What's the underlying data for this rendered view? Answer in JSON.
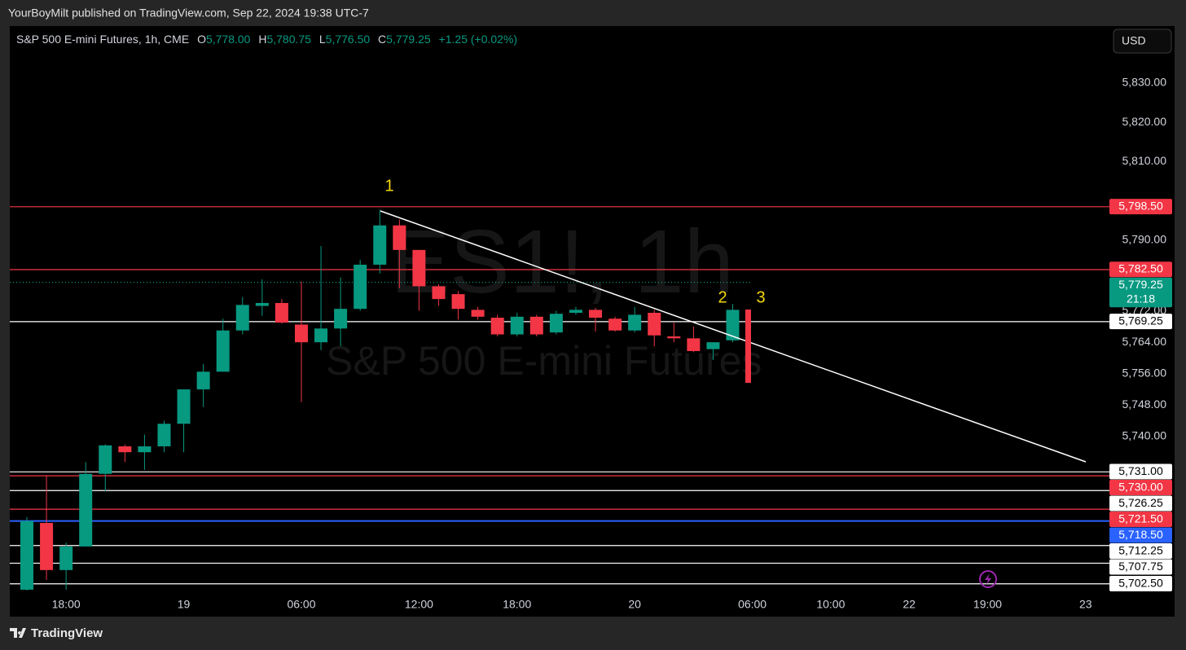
{
  "header": {
    "byline": "YourBoyMilt published on TradingView.com, Sep 22, 2024 19:38 UTC-7"
  },
  "footer": {
    "brand": "TradingView"
  },
  "currency": "USD",
  "chart_data": {
    "type": "candlestick",
    "title": "S&P 500 E-mini Futures, 1h, CME",
    "ohlc_legend": {
      "o_label": "O",
      "o": "5,778.00",
      "h_label": "H",
      "h": "5,780.75",
      "l_label": "L",
      "l": "5,776.50",
      "c_label": "C",
      "c": "5,779.25",
      "change": "+1.25 (+0.02%)"
    },
    "watermark": [
      "ES1!, 1h",
      "S&P 500 E-mini Futures"
    ],
    "annotations": [
      "1",
      "2",
      "3"
    ],
    "up_color": "#089981",
    "down_color": "#f23645",
    "categories": [
      null,
      null,
      "18:00",
      null,
      null,
      null,
      null,
      null,
      "19",
      null,
      null,
      null,
      null,
      null,
      "06:00",
      null,
      null,
      null,
      null,
      null,
      "12:00",
      null,
      null,
      null,
      null,
      "18:00",
      null,
      null,
      null,
      null,
      null,
      "20",
      null,
      null,
      null,
      null,
      null,
      "06:00",
      null,
      null,
      null,
      "10:00",
      null,
      null,
      null,
      "22",
      null,
      null,
      null,
      "19:00",
      null,
      null,
      null,
      null,
      "23"
    ],
    "open": [
      5701,
      5718,
      5706,
      5712,
      5730.5,
      5737.5,
      5736,
      5737.5,
      5743.25,
      5752,
      5756.5,
      5767,
      5773.25,
      5774,
      5768.5,
      5764,
      5767.5,
      5772.5,
      5783.75,
      5793.75,
      5787.5,
      5778.25,
      5776.25,
      5772.25,
      5770.25,
      5766,
      5770.5,
      5766.5,
      5771.5,
      5772.25,
      5770,
      5767,
      5771.5,
      5765.5,
      5765,
      5762.25,
      5764.5,
      null,
      null,
      null,
      null,
      null,
      null,
      null,
      null,
      null,
      null,
      null,
      null,
      null,
      null,
      null,
      null,
      null,
      null
    ],
    "high": [
      5719.5,
      5730,
      5713,
      5733.5,
      5738,
      5738,
      5740.5,
      5744,
      5752,
      5758.5,
      5770,
      5775.5,
      5780,
      5775,
      5779.5,
      5788.5,
      5780.5,
      5785,
      5797.75,
      5795.25,
      5787.5,
      5778.75,
      5777,
      5773,
      5771,
      5771.5,
      5771,
      5772,
      5773,
      5772.75,
      5770.5,
      5773,
      5772.25,
      5769,
      5768,
      5764,
      5773.75,
      null,
      null,
      null,
      null,
      null,
      null,
      null,
      null,
      null,
      null,
      null,
      null,
      null,
      null,
      null,
      null,
      null,
      null
    ],
    "low": [
      5700.75,
      5703.5,
      5701,
      5712,
      5726,
      5733.5,
      5731.5,
      5736,
      5736,
      5747.5,
      5756.5,
      5766,
      5770.75,
      5768.75,
      5748.75,
      5762,
      5763,
      5772,
      5781.5,
      5777.75,
      5772,
      5773.25,
      5769.75,
      5769.75,
      5765.5,
      5765.5,
      5765.5,
      5766,
      5771,
      5766.75,
      5766.75,
      5766.5,
      5763,
      5764,
      5761.5,
      5759.5,
      5764,
      null,
      null,
      null,
      null,
      null,
      null,
      null,
      null,
      null,
      null,
      null,
      null,
      null,
      null,
      null,
      null,
      null,
      null
    ],
    "close": [
      5718.5,
      5706,
      5712,
      5730.5,
      5737.75,
      5736,
      5737.5,
      5743.25,
      5752,
      5756.5,
      5767,
      5773.5,
      5774,
      5769,
      5764,
      5767.5,
      5772.5,
      5783.75,
      5793.75,
      5787.5,
      5778.25,
      5775,
      5772.5,
      5770.5,
      5766,
      5770.5,
      5766,
      5771.25,
      5772.25,
      5770.25,
      5767,
      5771,
      5765.75,
      5765,
      5761.75,
      5764,
      5772.25,
      null,
      null,
      null,
      null,
      null,
      null,
      null,
      null,
      null,
      null,
      null,
      null,
      null,
      null,
      null,
      null,
      null,
      null
    ],
    "ylim": [
      5699.75,
      5844.5
    ],
    "yticks": [
      {
        "value": 5830,
        "label": "5,830.00"
      },
      {
        "value": 5820,
        "label": "5,820.00"
      },
      {
        "value": 5810,
        "label": "5,810.00"
      },
      {
        "value": 5790,
        "label": "5,790.00"
      },
      {
        "value": 5772,
        "label": "5,772.00"
      },
      {
        "value": 5764,
        "label": "5,764.00"
      },
      {
        "value": 5756,
        "label": "5,756.00"
      },
      {
        "value": 5748,
        "label": "5,748.00"
      },
      {
        "value": 5740,
        "label": "5,740.00"
      }
    ],
    "levels": [
      {
        "value": 5798.5,
        "label": "5,798.50",
        "color": "#f23645",
        "text_color": "#ffffff"
      },
      {
        "value": 5782.5,
        "label": "5,782.50",
        "color": "#f23645",
        "text_color": "#ffffff"
      },
      {
        "value": 5779.25,
        "label": "5,779.25",
        "countdown": "21:18",
        "color": "#089981",
        "text_color": "#ffffff",
        "style": "dotted"
      },
      {
        "value": 5769.25,
        "label": "5,769.25",
        "color": "#ffffff",
        "text_color": "#000000"
      },
      {
        "value": 5731,
        "label": "5,731.00",
        "color": "#ffffff",
        "text_color": "#000000"
      },
      {
        "value": 5730,
        "label": "5,730.00",
        "color": "#f23645",
        "text_color": "#ffffff"
      },
      {
        "value": 5726.25,
        "label": "5,726.25",
        "color": "#ffffff",
        "text_color": "#000000"
      },
      {
        "value": 5721.5,
        "label": "5,721.50",
        "color": "#f23645",
        "text_color": "#ffffff"
      },
      {
        "value": 5718.5,
        "label": "5,718.50",
        "color": "#2962ff",
        "text_color": "#ffffff"
      },
      {
        "value": 5712.25,
        "label": "5,712.25",
        "color": "#ffffff",
        "text_color": "#000000"
      },
      {
        "value": 5707.75,
        "label": "5,707.75",
        "color": "#ffffff",
        "text_color": "#000000"
      },
      {
        "value": 5702.5,
        "label": "5,702.50",
        "color": "#ffffff",
        "text_color": "#000000"
      }
    ]
  }
}
